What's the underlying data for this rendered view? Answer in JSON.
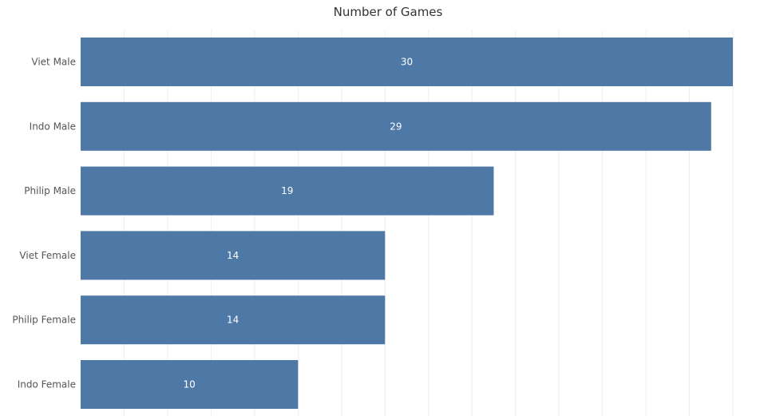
{
  "chart_data": {
    "type": "bar",
    "orientation": "horizontal",
    "title": "Number of Games",
    "xlabel": "",
    "ylabel": "",
    "categories": [
      "Viet Male",
      "Indo Male",
      "Philip Male",
      "Viet Female",
      "Philip Female",
      "Indo Female"
    ],
    "values": [
      30,
      29,
      19,
      14,
      14,
      10
    ],
    "xlim": [
      0,
      30
    ],
    "grid": true,
    "data_labels": true,
    "bar_color": "#4e79a7",
    "grid_color": "#eeeeee"
  }
}
